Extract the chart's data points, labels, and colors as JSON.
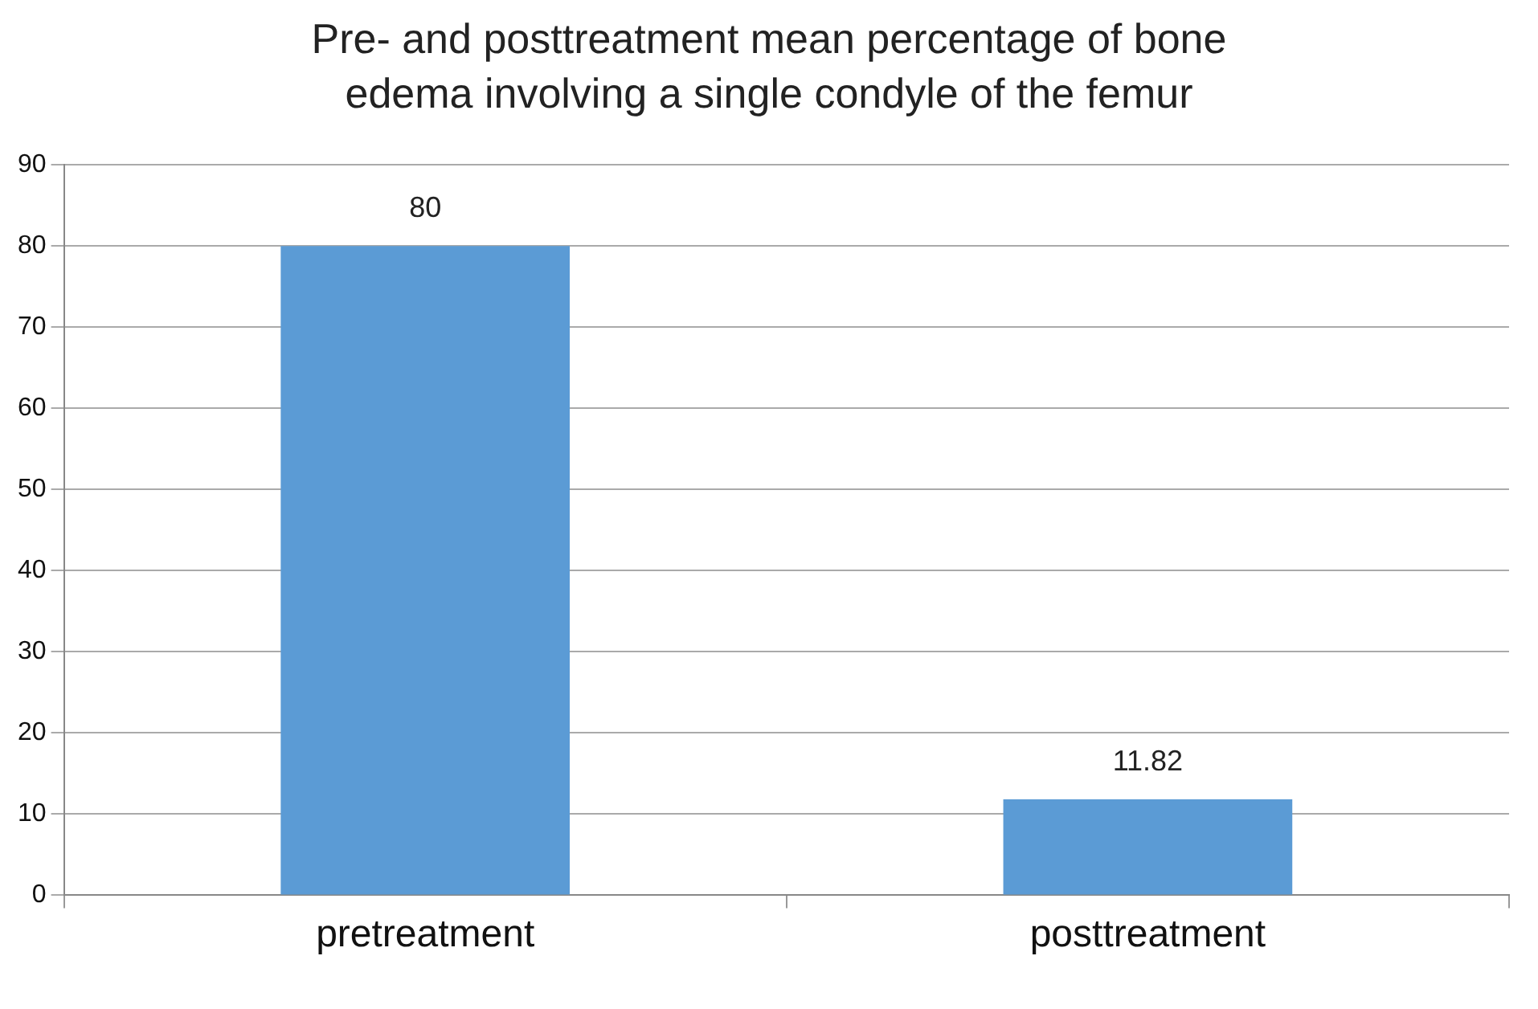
{
  "chart_data": {
    "type": "bar",
    "title": "Pre- and posttreatment mean percentage of bone edema involving a single condyle of the femur",
    "categories": [
      "pretreatment",
      "posttreatment"
    ],
    "values": [
      80,
      11.82
    ],
    "color": "#5b9bd5",
    "ylim": [
      0,
      90
    ],
    "yticks": [
      0,
      10,
      20,
      30,
      40,
      50,
      60,
      70,
      80,
      90
    ],
    "grid": "y",
    "data_labels": true,
    "legend": false
  }
}
